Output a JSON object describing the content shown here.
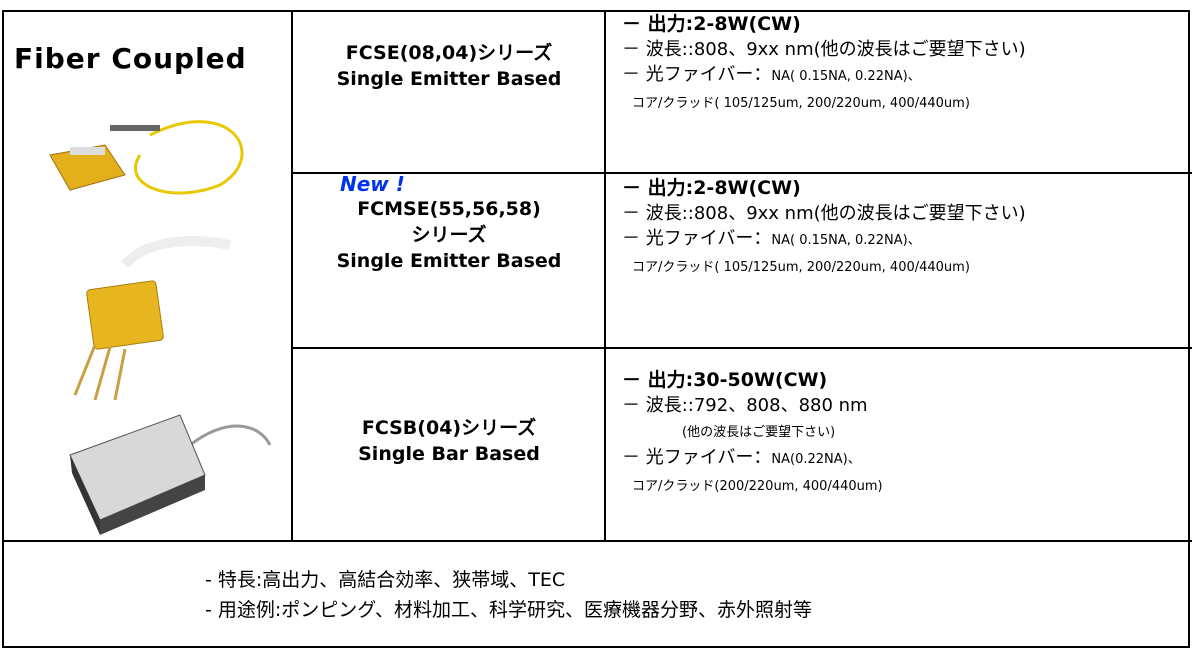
{
  "title": "Fiber Coupled",
  "products": [
    {
      "name": [
        "FCSE(08,04)シリーズ"
      ],
      "basis": "Single Emitter Based",
      "specs": [
        {
          "main": "－ 出力:2-8W(CW)"
        },
        {
          "main": "－ 波長::808、9xx nm(他の波長はご要望下さい)"
        },
        {
          "main": "－ 光ファイバー：",
          "detail": "NA( 0.15NA, 0.22NA)、"
        },
        {
          "detail": "コア/クラッド( 105/125um, 200/220um, 400/440um)"
        }
      ]
    },
    {
      "badge": "New !",
      "name": [
        "FCMSE(55,56,58)",
        "シリーズ"
      ],
      "basis": "Single Emitter Based",
      "specs": [
        {
          "main": "－ 出力:2-8W(CW)"
        },
        {
          "main": "－ 波長::808、9xx nm(他の波長はご要望下さい)"
        },
        {
          "main": "－ 光ファイバー：",
          "detail": "NA( 0.15NA, 0.22NA)、"
        },
        {
          "detail": "コア/クラッド( 105/125um, 200/220um, 400/440um)"
        }
      ]
    },
    {
      "name": [
        "FCSB(04)シリーズ"
      ],
      "basis": "Single Bar Based",
      "specs": [
        {
          "main": "－ 出力:30-50W(CW)"
        },
        {
          "main": "－ 波長::792、808、880 nm"
        },
        {
          "detail": "(他の波長はご要望下さい)"
        },
        {
          "main": "－ 光ファイバー：",
          "detail": "NA(0.22NA)、"
        },
        {
          "detail": "コア/クラッド(200/220um, 400/440um)"
        }
      ]
    }
  ],
  "features": [
    "- 特長:高出力、高結合効率、狭帯域、TEC",
    "- 用途例:ポンピング、材料加工、科学研究、医療機器分野、赤外照射等"
  ]
}
